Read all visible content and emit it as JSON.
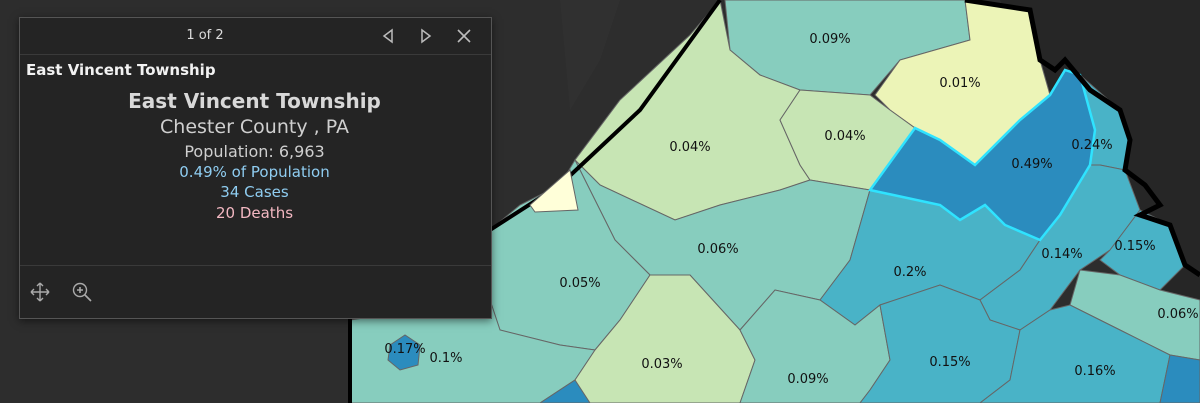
{
  "popup": {
    "pager": "1 of 2",
    "feature_title": "East Vincent Township",
    "name": "East Vincent Township",
    "county": "Chester County , PA",
    "population": "Population: 6,963",
    "percent": "0.49% of Population",
    "cases": "34 Cases",
    "deaths": "20  Deaths",
    "colors": {
      "percent": "#8fcdf1",
      "cases": "#8fcdf1",
      "deaths": "#f3b8c2"
    }
  },
  "map": {
    "labels": [
      "0.09%",
      "0.01%",
      "0.04%",
      "0.04%",
      "0.49%",
      "0.24%",
      "0.06%",
      "0.05%",
      "0.2%",
      "0.14%",
      "0.15%",
      "0.06%",
      "0.17%",
      "0.1%",
      "0.03%",
      "0.09%",
      "0.15%",
      "0.16%"
    ],
    "selected_outline_color": "#2fe3ff"
  }
}
